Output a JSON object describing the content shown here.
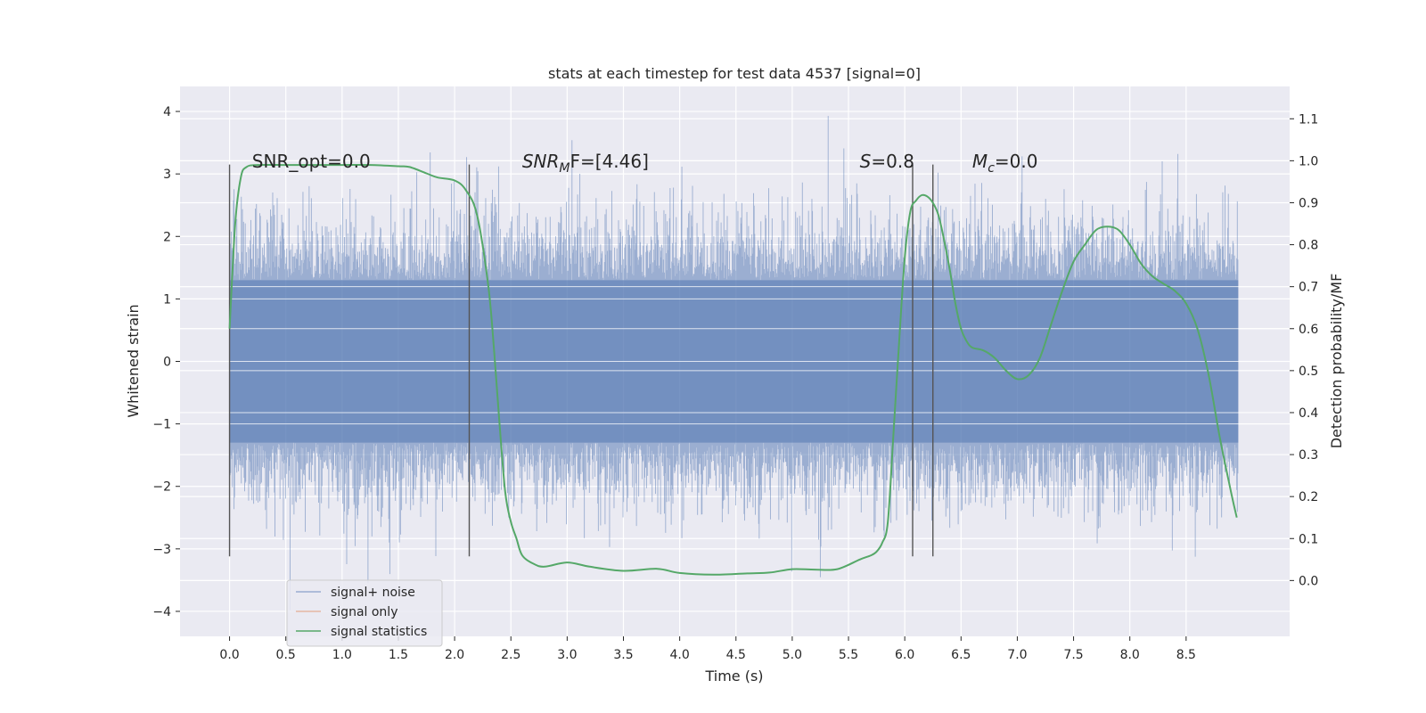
{
  "chart_data": {
    "type": "line",
    "title": "stats at each timestep for test data 4537 [signal=0]",
    "xlabel": "Time (s)",
    "ylabel": "Whitened strain",
    "y2label": "Detection probability/MF",
    "xlim": [
      -0.44,
      9.42
    ],
    "ylim": [
      -4.4,
      4.4
    ],
    "y2lim": [
      -0.133,
      1.177
    ],
    "x_ticks": [
      0.0,
      0.5,
      1.0,
      1.5,
      2.0,
      2.5,
      3.0,
      3.5,
      4.0,
      4.5,
      5.0,
      5.5,
      6.0,
      6.5,
      7.0,
      7.5,
      8.0,
      8.5
    ],
    "x_tick_labels": [
      "0.0",
      "0.5",
      "1.0",
      "1.5",
      "2.0",
      "2.5",
      "3.0",
      "3.5",
      "4.0",
      "4.5",
      "5.0",
      "5.5",
      "6.0",
      "6.5",
      "7.0",
      "7.5",
      "8.0",
      "8.5"
    ],
    "y_ticks": [
      4,
      3,
      2,
      1,
      0,
      -1,
      -2,
      -3,
      -4
    ],
    "y_tick_labels": [
      "4",
      "3",
      "2",
      "1",
      "0",
      "−1",
      "−2",
      "−3",
      "−4"
    ],
    "y2_ticks": [
      1.1,
      1.0,
      0.9,
      0.8,
      0.7,
      0.6,
      0.5,
      0.4,
      0.3,
      0.2,
      0.1,
      0.0
    ],
    "y2_tick_labels": [
      "1.1",
      "1.0",
      "0.9",
      "0.8",
      "0.7",
      "0.6",
      "0.5",
      "0.4",
      "0.3",
      "0.2",
      "0.1",
      "0.0"
    ],
    "grid": true,
    "legend_position": "lower-left",
    "legend": [
      {
        "label": "signal+ noise",
        "color": "#4c72b0"
      },
      {
        "label": "signal only",
        "color": "#dd8452"
      },
      {
        "label": "signal statistics",
        "color": "#55a868"
      }
    ],
    "annotations": [
      {
        "x": 0.2,
        "y": 3.2,
        "prefix": "SNR_opt=0.0",
        "italic": "",
        "sub": "",
        "suffix": ""
      },
      {
        "x": 2.6,
        "y": 3.2,
        "prefix": "",
        "italic": "SNR",
        "sub": "M",
        "suffix": "F=[4.46]"
      },
      {
        "x": 5.6,
        "y": 3.2,
        "prefix": "",
        "italic": "S",
        "sub": "",
        "suffix": "=0.8"
      },
      {
        "x": 6.6,
        "y": 3.2,
        "prefix": "",
        "italic": "M",
        "sub": "c",
        "suffix": "=0.0"
      }
    ],
    "vlines": [
      {
        "x": 0.0,
        "ymin": -3.12,
        "ymax": 3.15
      },
      {
        "x": 2.13,
        "ymin": -3.12,
        "ymax": 3.15
      },
      {
        "x": 6.07,
        "ymin": -3.12,
        "ymax": 3.15
      },
      {
        "x": 6.25,
        "ymin": -3.12,
        "ymax": 3.15
      }
    ],
    "noise_series": {
      "name": "signal+ noise",
      "color": "#4c72b0",
      "t_start": 0.0,
      "t_end": 8.96,
      "core_amplitude": 1.3,
      "peak_max": 4.02,
      "trough_min": -3.98
    },
    "signal_series": {
      "name": "signal only",
      "color": "#dd8452",
      "values": []
    },
    "stat_series": {
      "name": "signal statistics",
      "color": "#55a868",
      "x": [
        0.0,
        0.05,
        0.1,
        0.15,
        0.25,
        0.5,
        0.75,
        1.0,
        1.25,
        1.5,
        1.6,
        1.75,
        1.85,
        2.0,
        2.1,
        2.2,
        2.3,
        2.35,
        2.4,
        2.45,
        2.5,
        2.55,
        2.6,
        2.7,
        2.8,
        3.0,
        3.2,
        3.5,
        3.8,
        4.0,
        4.3,
        4.6,
        4.8,
        5.0,
        5.2,
        5.4,
        5.6,
        5.7,
        5.75,
        5.8,
        5.85,
        5.9,
        5.95,
        6.0,
        6.05,
        6.1,
        6.15,
        6.2,
        6.25,
        6.3,
        6.35,
        6.4,
        6.45,
        6.5,
        6.55,
        6.6,
        6.7,
        6.8,
        6.9,
        7.0,
        7.1,
        7.2,
        7.3,
        7.4,
        7.5,
        7.6,
        7.7,
        7.8,
        7.9,
        8.0,
        8.1,
        8.2,
        8.3,
        8.4,
        8.5,
        8.6,
        8.7,
        8.8,
        8.9,
        8.95
      ],
      "values": [
        0.6,
        0.85,
        0.96,
        0.985,
        0.99,
        0.99,
        0.99,
        0.99,
        0.99,
        0.987,
        0.985,
        0.97,
        0.96,
        0.953,
        0.93,
        0.87,
        0.7,
        0.55,
        0.37,
        0.21,
        0.14,
        0.1,
        0.06,
        0.04,
        0.033,
        0.043,
        0.033,
        0.023,
        0.028,
        0.018,
        0.014,
        0.017,
        0.019,
        0.027,
        0.026,
        0.027,
        0.05,
        0.06,
        0.069,
        0.09,
        0.14,
        0.35,
        0.57,
        0.77,
        0.88,
        0.905,
        0.918,
        0.915,
        0.9,
        0.87,
        0.81,
        0.74,
        0.66,
        0.6,
        0.57,
        0.555,
        0.548,
        0.53,
        0.5,
        0.48,
        0.489,
        0.53,
        0.61,
        0.69,
        0.76,
        0.8,
        0.835,
        0.843,
        0.835,
        0.8,
        0.755,
        0.725,
        0.707,
        0.69,
        0.66,
        0.6,
        0.49,
        0.34,
        0.21,
        0.15
      ]
    }
  }
}
